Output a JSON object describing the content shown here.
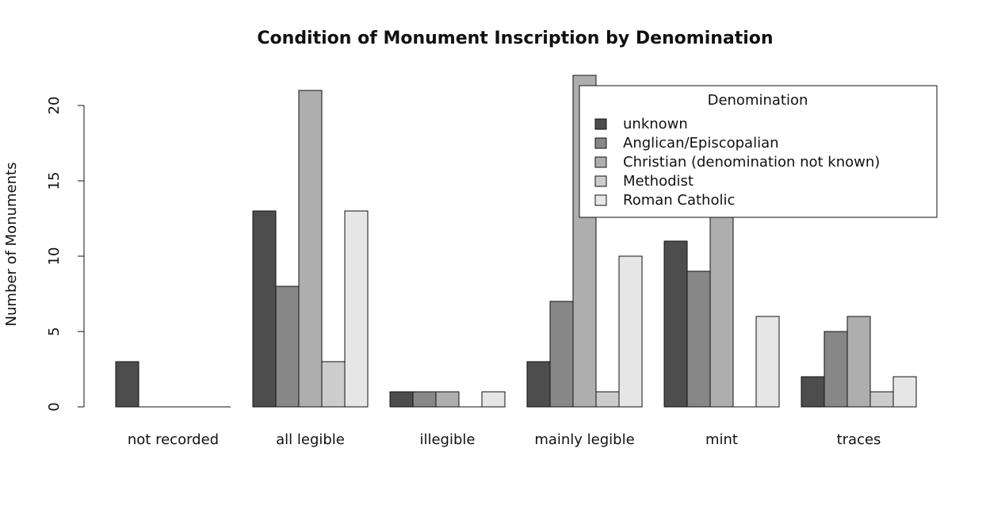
{
  "chart_data": {
    "type": "bar",
    "title": "Condition of Monument Inscription by Denomination",
    "xlabel": "",
    "ylabel": "Number of Monuments",
    "categories": [
      "not recorded",
      "all legible",
      "illegible",
      "mainly legible",
      "mint",
      "traces"
    ],
    "series": [
      {
        "name": "unknown",
        "color": "#4d4d4d",
        "values": [
          3,
          13,
          1,
          3,
          11,
          2
        ]
      },
      {
        "name": "Anglican/Episcopalian",
        "color": "#878787",
        "values": [
          0,
          8,
          1,
          7,
          9,
          5
        ]
      },
      {
        "name": "Christian (denomination not known)",
        "color": "#aeaeae",
        "values": [
          0,
          21,
          1,
          22,
          19,
          6
        ]
      },
      {
        "name": "Methodist",
        "color": "#cccccc",
        "values": [
          0,
          3,
          0,
          1,
          0,
          1
        ]
      },
      {
        "name": "Roman Catholic",
        "color": "#e6e6e6",
        "values": [
          0,
          13,
          1,
          10,
          6,
          2
        ]
      }
    ],
    "ylim": [
      0,
      22
    ],
    "yticks": [
      0,
      5,
      10,
      15,
      20
    ],
    "grid": false,
    "legend": {
      "title": "Denomination",
      "position": "top-right"
    }
  }
}
